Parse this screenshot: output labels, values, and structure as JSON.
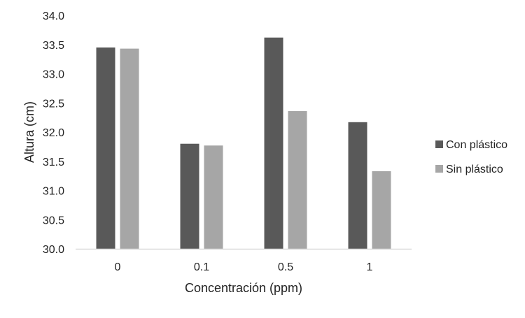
{
  "chart_data": {
    "type": "bar",
    "title": "",
    "xlabel": "Concentración (ppm)",
    "ylabel": "Altura (cm)",
    "categories": [
      "0",
      "0.1",
      "0.5",
      "1"
    ],
    "ylim": [
      30.0,
      34.0
    ],
    "yticks": [
      "30.0",
      "30.5",
      "31.0",
      "31.5",
      "32.0",
      "32.5",
      "33.0",
      "33.5",
      "34.0"
    ],
    "grid": false,
    "legend_position": "right",
    "series": [
      {
        "name": "Con plástico",
        "values": [
          33.45,
          31.8,
          33.62,
          32.17
        ],
        "color": "#595959"
      },
      {
        "name": "Sin plástico",
        "values": [
          33.43,
          31.77,
          32.36,
          31.33
        ],
        "color": "#a6a6a6"
      }
    ]
  },
  "colors": {
    "axis": "#d9d9d9",
    "text": "#222222"
  }
}
